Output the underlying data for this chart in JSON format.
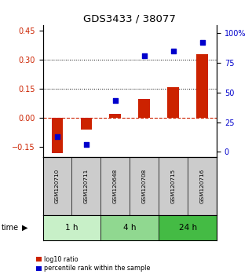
{
  "title": "GDS3433 / 38077",
  "samples": [
    "GSM120710",
    "GSM120711",
    "GSM120648",
    "GSM120708",
    "GSM120715",
    "GSM120716"
  ],
  "log10_ratio": [
    -0.18,
    -0.06,
    0.02,
    0.1,
    0.16,
    0.33
  ],
  "percentile_rank": [
    13,
    6,
    43,
    81,
    85,
    92
  ],
  "time_groups": [
    {
      "label": "1 h",
      "indices": [
        0,
        1
      ],
      "color": "#c8f0c8"
    },
    {
      "label": "4 h",
      "indices": [
        2,
        3
      ],
      "color": "#90d890"
    },
    {
      "label": "24 h",
      "indices": [
        4,
        5
      ],
      "color": "#44bb44"
    }
  ],
  "ylim_left": [
    -0.2,
    0.48
  ],
  "ylim_right": [
    -4.26,
    107
  ],
  "yticks_left": [
    -0.15,
    0,
    0.15,
    0.3,
    0.45
  ],
  "yticks_right": [
    0,
    25,
    50,
    75,
    100
  ],
  "hlines": [
    0.15,
    0.3
  ],
  "bar_color": "#cc2200",
  "dot_color": "#0000cc",
  "background_color": "#ffffff",
  "label_bg_color": "#cccccc",
  "legend_items": [
    "log10 ratio",
    "percentile rank within the sample"
  ],
  "time_label": "time"
}
